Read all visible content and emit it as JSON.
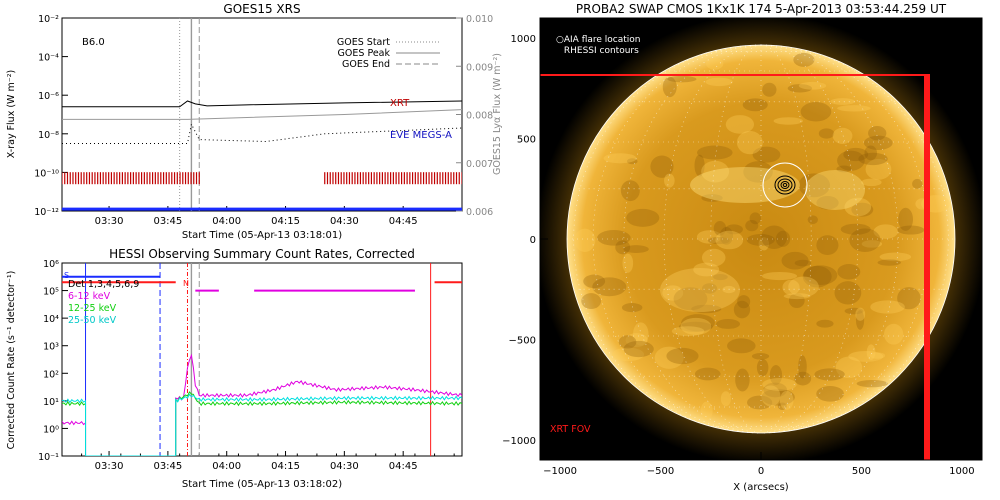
{
  "colors": {
    "xrt": "#c00000",
    "eve": "#1010c0",
    "goes_dark": "#000000",
    "goes_grey": "#999999",
    "hessi_6_12": "#e000e0",
    "hessi_12_25": "#10d010",
    "hessi_25_50": "#00e0e0",
    "fov_red": "#ff1a1a",
    "sun_orange": "#e3a322",
    "sun_background": "#000000"
  },
  "panel1": {
    "title": "GOES15 XRS",
    "class_label": "B6.0",
    "left_axis_label": "X-ray Flux (W m⁻²)",
    "right_axis_label": "GOES15 Lyα Flux (W m⁻²)",
    "x_axis_label": "Start Time (05-Apr-13 03:18:01)",
    "x_ticks": [
      "03:30",
      "03:45",
      "04:00",
      "04:15",
      "04:30",
      "04:45"
    ],
    "left_ticks": [
      "10⁻²",
      "10⁻⁴",
      "10⁻⁶",
      "10⁻⁸",
      "10⁻¹⁰",
      "10⁻¹²"
    ],
    "right_ticks": [
      "0.010",
      "0.009",
      "0.008",
      "0.007",
      "0.006"
    ],
    "legend": [
      {
        "label": "GOES Start",
        "style": "dotted"
      },
      {
        "label": "GOES Peak",
        "style": "solid"
      },
      {
        "label": "GOES End",
        "style": "dashed"
      }
    ],
    "series_labels": {
      "xrt": "XRT",
      "eve": "EVE MEGS-A"
    }
  },
  "panel2": {
    "title": "HESSI Observing Summary Count Rates, Corrected",
    "y_axis_label": "Corrected Count Rate (s⁻¹ detector⁻¹)",
    "x_axis_label": "Start Time (05-Apr-13 03:18:02)",
    "x_ticks": [
      "03:30",
      "03:45",
      "04:00",
      "04:15",
      "04:30",
      "04:45"
    ],
    "y_ticks": [
      "10⁶",
      "10⁵",
      "10⁴",
      "10³",
      "10²",
      "10¹",
      "10⁰",
      "10⁻¹"
    ],
    "legend": [
      {
        "label": "Det 1,3,4,5,6,9",
        "color": "#000000"
      },
      {
        "label": "6-12 keV",
        "color": "#e000e0"
      },
      {
        "label": "12-25 keV",
        "color": "#10d010"
      },
      {
        "label": "25-50 keV",
        "color": "#00e0e0"
      }
    ],
    "markers": {
      "s": "S",
      "n": "N"
    }
  },
  "panel3": {
    "title": "PROBA2 SWAP CMOS 1Kx1K 174   5-Apr-2013 03:53:44.259 UT",
    "legend": [
      {
        "label": "AIA flare location",
        "symbol": "○"
      },
      {
        "label": "RHESSI contours",
        "symbol": "○"
      }
    ],
    "x_axis_label": "X (arcsecs)",
    "x_ticks": [
      "−1000",
      "−500",
      "0",
      "500",
      "1000"
    ],
    "y_ticks": [
      "1000",
      "500",
      "0",
      "−500",
      "−1000"
    ],
    "fov_label": "XRT FOV"
  },
  "chart_data": [
    {
      "type": "line",
      "title": "GOES15 XRS",
      "xlabel": "Start Time (05-Apr-13 03:18:01)",
      "ylabel": "X-ray Flux (W m⁻²)",
      "ylabel_right": "GOES15 Lyα Flux (W m⁻²)",
      "xlim": [
        "03:18",
        "05:00"
      ],
      "ylim_log": [
        -12,
        -2
      ],
      "y_right_lim": [
        0.006,
        0.01
      ],
      "yscale": "log",
      "event_times": {
        "start": "03:48",
        "peak": "03:51",
        "end": "03:53"
      },
      "series": [
        {
          "name": "XRT",
          "color": "#000000",
          "x": [
            "03:18",
            "03:48",
            "03:50",
            "03:52",
            "03:55",
            "04:05",
            "04:30",
            "05:00"
          ],
          "y_log": [
            -6.6,
            -6.6,
            -6.3,
            -6.45,
            -6.55,
            -6.5,
            -6.4,
            -6.3
          ]
        },
        {
          "name": "GOES Lyα",
          "color": "#999999",
          "x": [
            "03:18",
            "03:50",
            "04:30",
            "05:00"
          ],
          "y_right": [
            0.0079,
            0.0079,
            0.008,
            0.0081
          ]
        },
        {
          "name": "EVE MEGS-A",
          "color": "#000000",
          "style": "dotted",
          "x": [
            "03:18",
            "03:50",
            "03:51",
            "03:53",
            "04:10",
            "04:25",
            "05:00"
          ],
          "y_log": [
            -8.5,
            -8.5,
            -7.5,
            -8.3,
            -8.4,
            -8.0,
            -7.7
          ]
        },
        {
          "name": "XRT observations",
          "color": "#c00000",
          "y_log": -10.3,
          "intervals": [
            [
              "03:18",
              "03:53"
            ],
            [
              "04:25",
              "05:00"
            ]
          ]
        },
        {
          "name": "Baseline",
          "color": "#1a2cff",
          "y_log": -11.9,
          "intervals": [
            [
              "03:18",
              "05:00"
            ]
          ]
        }
      ]
    },
    {
      "type": "line",
      "title": "HESSI Observing Summary Count Rates, Corrected",
      "xlabel": "Start Time (05-Apr-13 03:18:02)",
      "ylabel": "Corrected Count Rate (s⁻¹ detector⁻¹)",
      "xlim": [
        "03:18",
        "05:00"
      ],
      "ylim_log": [
        -1,
        6
      ],
      "yscale": "log",
      "series": [
        {
          "name": "6-12 keV",
          "color": "#e000e0",
          "x": [
            "03:18",
            "03:24",
            "03:47",
            "03:49",
            "03:50",
            "03:51",
            "03:52",
            "03:53",
            "03:58",
            "04:05",
            "04:12",
            "04:18",
            "04:28",
            "04:40",
            "04:48",
            "05:00"
          ],
          "y_log": [
            0.2,
            0.2,
            1.1,
            1.1,
            2.2,
            2.7,
            1.6,
            1.2,
            1.2,
            1.2,
            1.4,
            1.7,
            1.4,
            1.5,
            1.4,
            1.2
          ]
        },
        {
          "name": "12-25 keV",
          "color": "#10d010",
          "x": [
            "03:18",
            "03:24",
            "03:47",
            "03:51",
            "03:53",
            "04:10",
            "04:30",
            "05:00"
          ],
          "y_log": [
            0.9,
            0.9,
            1.0,
            1.3,
            0.9,
            0.9,
            0.95,
            0.9
          ]
        },
        {
          "name": "25-50 keV",
          "color": "#00e0e0",
          "x": [
            "03:18",
            "03:24",
            "03:47",
            "03:51",
            "03:53",
            "04:10",
            "04:30",
            "05:00"
          ],
          "y_log": [
            1.0,
            1.0,
            1.0,
            1.2,
            1.05,
            1.05,
            1.1,
            1.1
          ]
        },
        {
          "name": "Det 1,3,4,5,6,9",
          "color": "#1a2cff",
          "y_log": 5.5,
          "intervals": [
            [
              "03:18",
              "03:43"
            ]
          ]
        }
      ],
      "markers": [
        {
          "label": "S",
          "x": "03:18"
        },
        {
          "label": "N",
          "x": "03:49"
        }
      ]
    },
    {
      "type": "scatter",
      "title": "PROBA2 SWAP CMOS 1Kx1K 174   5-Apr-2013 03:53:44.259 UT",
      "xlabel": "X (arcsecs)",
      "xlim": [
        -1100,
        1100
      ],
      "ylim": [
        -1100,
        1100
      ],
      "solar_radius": 960,
      "aia_flare_location": {
        "x": 120,
        "y": 270
      },
      "xrt_fov": {
        "x": [
          -1100,
          830
        ],
        "y": [
          -1100,
          820
        ]
      },
      "fov_label": "XRT FOV"
    }
  ]
}
